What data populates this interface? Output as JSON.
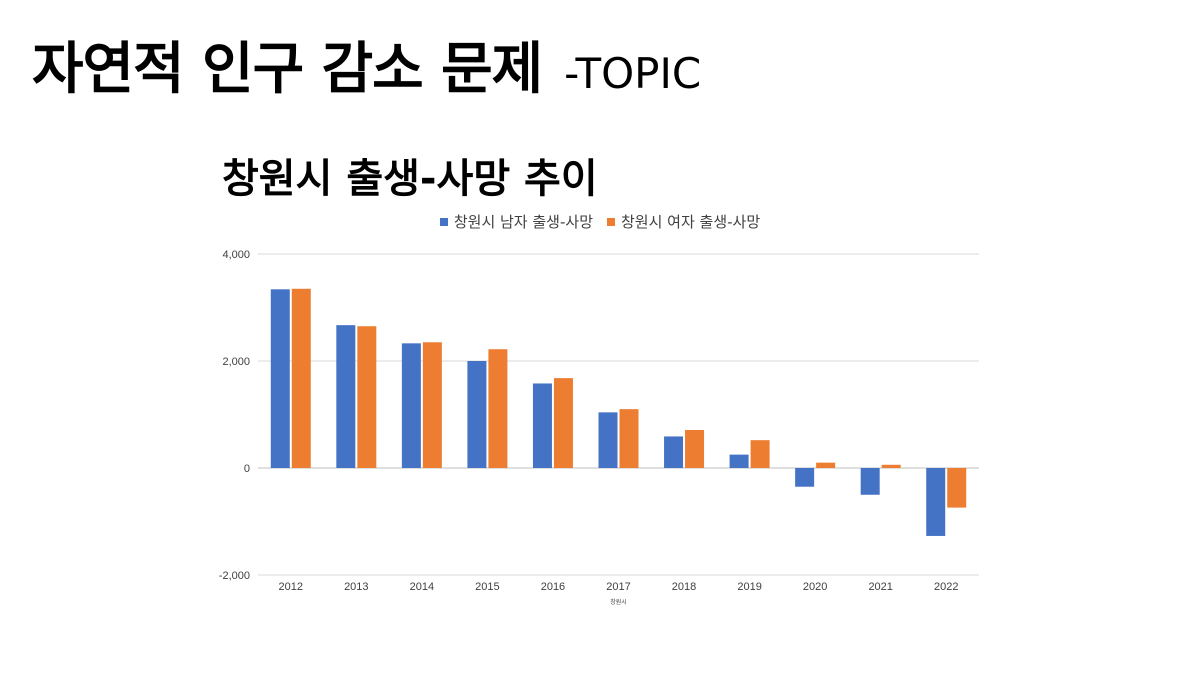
{
  "slide": {
    "title": "자연적 인구 감소 문제",
    "subtitle": "-TOPIC"
  },
  "colors": {
    "male": "#4472c4",
    "female": "#ed7d31",
    "grid": "#d9d9d9",
    "axis": "#bfbfbf"
  },
  "chart_data": {
    "type": "bar",
    "title": "창원시 출생-사망 추이",
    "xlabel": "창원시",
    "ylabel": "",
    "categories": [
      "2012",
      "2013",
      "2014",
      "2015",
      "2016",
      "2017",
      "2018",
      "2019",
      "2020",
      "2021",
      "2022"
    ],
    "series": [
      {
        "name": "창원시 남자 출생-사망",
        "values": [
          3340,
          2670,
          2330,
          2000,
          1580,
          1040,
          590,
          250,
          -350,
          -500,
          -1270
        ]
      },
      {
        "name": "창원시 여자 출생-사망",
        "values": [
          3350,
          2650,
          2350,
          2220,
          1680,
          1100,
          710,
          520,
          100,
          60,
          -740
        ]
      }
    ],
    "yticks": [
      "4,000",
      "2,000",
      "0",
      "-2,000"
    ],
    "ylim": [
      -2000,
      4000
    ],
    "grid": true,
    "legend_position": "top"
  }
}
